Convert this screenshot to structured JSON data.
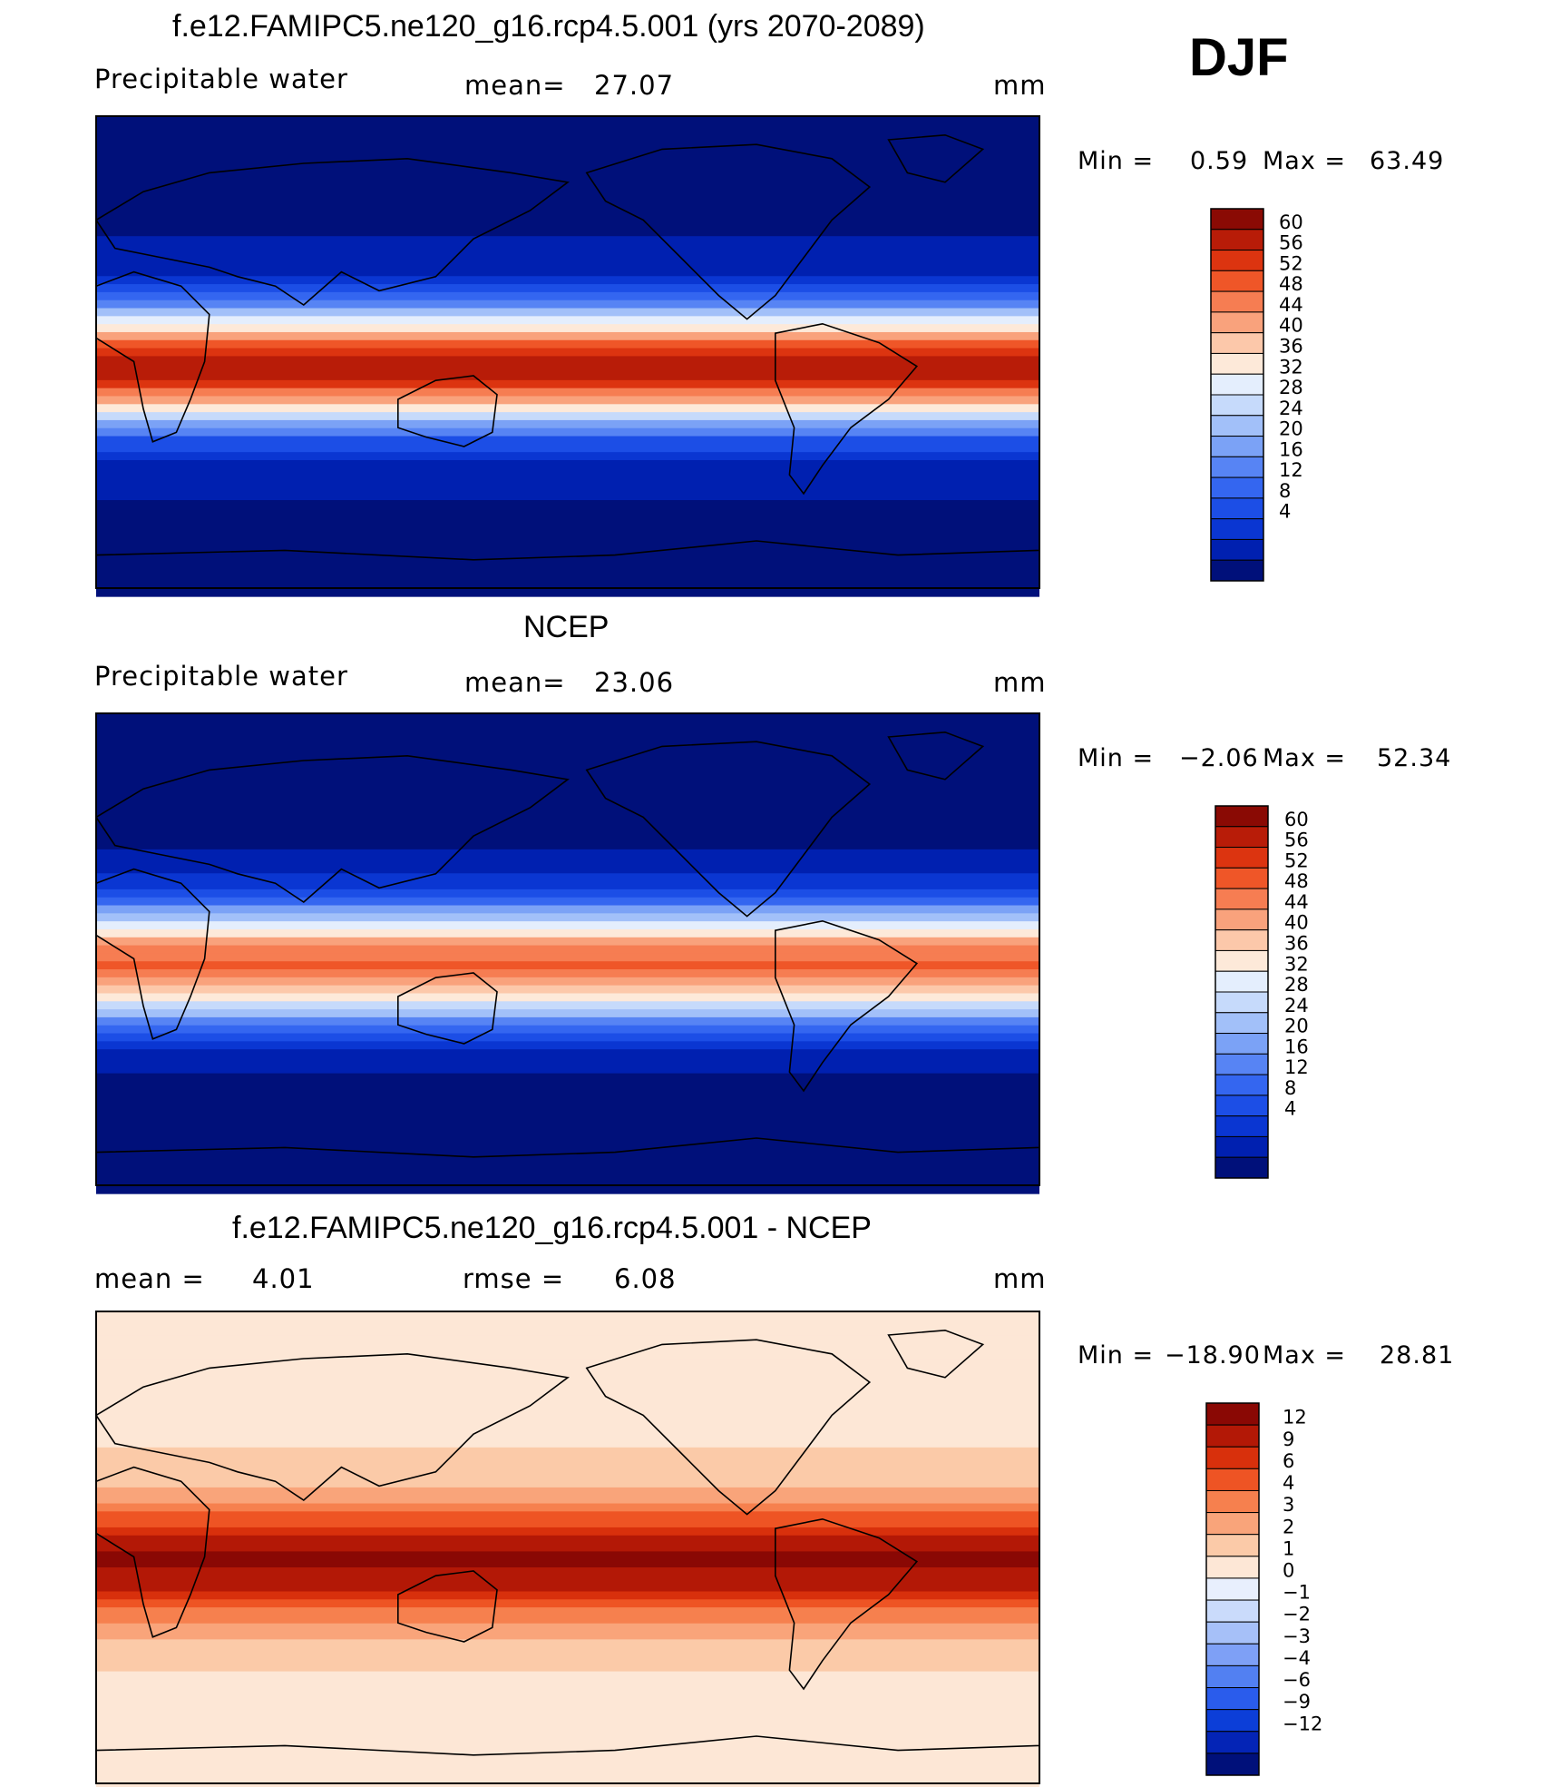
{
  "season": "DJF",
  "colors": {
    "abs_scale": [
      "#00107a",
      "#0020b0",
      "#0a36d2",
      "#1c4ee6",
      "#3466f0",
      "#5784f4",
      "#7ba2f6",
      "#a2c0f9",
      "#c6dafb",
      "#e4eefd",
      "#fde9d9",
      "#fcc8aa",
      "#f9a27c",
      "#f67d52",
      "#ef5628",
      "#dc3410",
      "#b81c08",
      "#8a0a04"
    ],
    "diff_scale": [
      "#00107a",
      "#0424b6",
      "#0c3ed8",
      "#2a5cec",
      "#5280f2",
      "#7ea0f6",
      "#a6c0f8",
      "#cadbfb",
      "#e8effd",
      "#fde7d6",
      "#fbcaa8",
      "#f9a47a",
      "#f6804e",
      "#ee5424",
      "#d8300c",
      "#b31806",
      "#8a0804"
    ]
  },
  "chart_data": [
    {
      "type": "heatmap",
      "title": "f.e12.FAMIPC5.ne120_g16.rcp4.5.001 (yrs 2070-2089)",
      "left_label": "Precipitable  water",
      "center_label": "mean=",
      "center_value": "27.07",
      "units": "mm",
      "min_label": "Min  =",
      "min_value": "0.59",
      "max_label": "Max  =",
      "max_value": "63.49",
      "levels": [
        "60",
        "56",
        "52",
        "48",
        "44",
        "40",
        "36",
        "32",
        "28",
        "24",
        "20",
        "16",
        "12",
        "8",
        "4"
      ],
      "tropical_peak": 0.92,
      "extratropics": 0.05
    },
    {
      "type": "heatmap",
      "title": "NCEP",
      "left_label": "Precipitable  water",
      "center_label": "mean=",
      "center_value": "23.06",
      "units": "mm",
      "min_label": "Min  =",
      "min_value": "−2.06",
      "max_label": "Max  =",
      "max_value": "52.34",
      "levels": [
        "60",
        "56",
        "52",
        "48",
        "44",
        "40",
        "36",
        "32",
        "28",
        "24",
        "20",
        "16",
        "12",
        "8",
        "4"
      ],
      "tropical_peak": 0.78,
      "extratropics": 0.04
    },
    {
      "type": "heatmap",
      "title": "f.e12.FAMIPC5.ne120_g16.rcp4.5.001 - NCEP",
      "left_label": "mean  =",
      "left_value": "4.01",
      "center_label": "rmse  =",
      "center_value": "6.08",
      "units": "mm",
      "min_label": "Min  =",
      "min_value": "−18.90",
      "max_label": "Max  =",
      "max_value": "28.81",
      "levels": [
        "12",
        "9",
        "6",
        "4",
        "3",
        "2",
        "1",
        "0",
        "−1",
        "−2",
        "−3",
        "−4",
        "−6",
        "−9",
        "−12"
      ],
      "tropical_peak": 0.95,
      "extratropics": 0.58
    }
  ]
}
